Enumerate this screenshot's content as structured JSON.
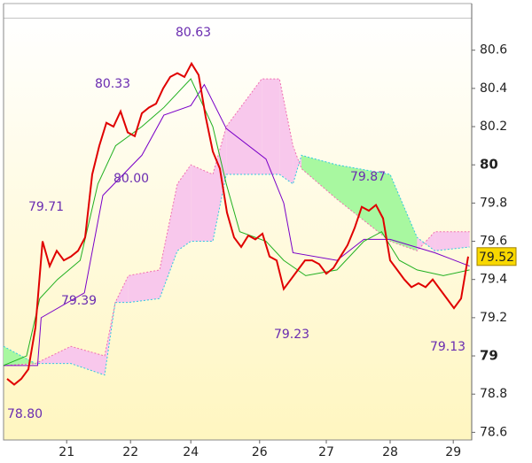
{
  "chart_data": {
    "type": "line",
    "ylim": [
      78.56,
      80.77
    ],
    "yticks": [
      78.6,
      78.8,
      79,
      79.2,
      79.4,
      79.6,
      79.8,
      80,
      80.2,
      80.4,
      80.6
    ],
    "xlim": [
      -0.5,
      65.5
    ],
    "xticks": [
      {
        "value": 8.4,
        "label": "21"
      },
      {
        "value": 17.4,
        "label": "22"
      },
      {
        "value": 25.9,
        "label": "24"
      },
      {
        "value": 35.6,
        "label": "26"
      },
      {
        "value": 45,
        "label": "27"
      },
      {
        "value": 54,
        "label": "28"
      },
      {
        "value": 62.9,
        "label": "29"
      }
    ],
    "price": {
      "color": "#e00000",
      "values": [
        78.88,
        78.85,
        78.88,
        78.93,
        79.15,
        79.6,
        79.47,
        79.55,
        79.5,
        79.52,
        79.55,
        79.62,
        79.95,
        80.1,
        80.22,
        80.2,
        80.28,
        80.17,
        80.15,
        80.27,
        80.3,
        80.32,
        80.4,
        80.46,
        80.48,
        80.46,
        80.53,
        80.47,
        80.25,
        80.07,
        79.98,
        79.75,
        79.62,
        79.57,
        79.63,
        79.61,
        79.64,
        79.52,
        79.5,
        79.35,
        79.4,
        79.45,
        79.5,
        79.5,
        79.48,
        79.43,
        79.46,
        79.52,
        79.58,
        79.67,
        79.78,
        79.76,
        79.79,
        79.72,
        79.5,
        79.45,
        79.4,
        79.36,
        79.38,
        79.36,
        79.4,
        79.35,
        79.3,
        79.25,
        79.3,
        79.52
      ]
    },
    "price_tag": "79.52",
    "series": [
      {
        "color": "#7a00c8",
        "x": [
          -0.5,
          4.3,
          4.8,
          10.9,
          13.5,
          19,
          22.1,
          25.9,
          27.8,
          30.9,
          36.5,
          39,
          40.3,
          46.5,
          50.3,
          54,
          60.3,
          65.2
        ],
        "values": [
          78.95,
          78.95,
          79.2,
          79.33,
          79.84,
          80.05,
          80.26,
          80.31,
          80.42,
          80.19,
          80.03,
          79.8,
          79.54,
          79.5,
          79.61,
          79.61,
          79.54,
          79.47
        ]
      },
      {
        "color": "#20b020",
        "x": [
          -0.5,
          2.75,
          4.6,
          7.1,
          10.3,
          12.8,
          15.3,
          19,
          22.1,
          25.9,
          29,
          30.9,
          32.8,
          36.5,
          39,
          42.1,
          46.5,
          50.3,
          52.8,
          55.3,
          57.8,
          61.5,
          65.2
        ],
        "values": [
          78.95,
          79.0,
          79.3,
          79.4,
          79.5,
          79.9,
          80.1,
          80.2,
          80.3,
          80.45,
          80.2,
          79.9,
          79.65,
          79.6,
          79.5,
          79.42,
          79.45,
          79.6,
          79.65,
          79.5,
          79.45,
          79.42,
          79.45
        ]
      }
    ],
    "cloud": {
      "x": [
        -0.5,
        4,
        9,
        13.75,
        15.25,
        17.1,
        21.5,
        24,
        25.9,
        29,
        30.9,
        35.9,
        38.4,
        40.3,
        41.5,
        46.5,
        54,
        57.8,
        60.3,
        65.2
      ],
      "span_a": {
        "color": "#30c8e0",
        "values": [
          79.05,
          78.96,
          78.96,
          78.9,
          79.28,
          79.28,
          79.3,
          79.55,
          79.6,
          79.6,
          79.95,
          79.95,
          79.95,
          79.9,
          80.05,
          80.0,
          79.95,
          79.62,
          79.55,
          79.57
        ]
      },
      "span_b": {
        "color": "#f070b0",
        "values": [
          78.95,
          78.96,
          79.05,
          79.0,
          79.28,
          79.42,
          79.45,
          79.9,
          80.0,
          79.95,
          80.2,
          80.45,
          80.45,
          80.1,
          79.98,
          79.82,
          79.6,
          79.55,
          79.65,
          79.65
        ]
      },
      "up_color": "#a8f8a0",
      "down_color": "#f8c8ec"
    },
    "annotations": [
      "80.63",
      "80.33",
      "79.71",
      "80.00",
      "79.39",
      "79.23",
      "79.87",
      "79.13",
      "78.80"
    ]
  }
}
